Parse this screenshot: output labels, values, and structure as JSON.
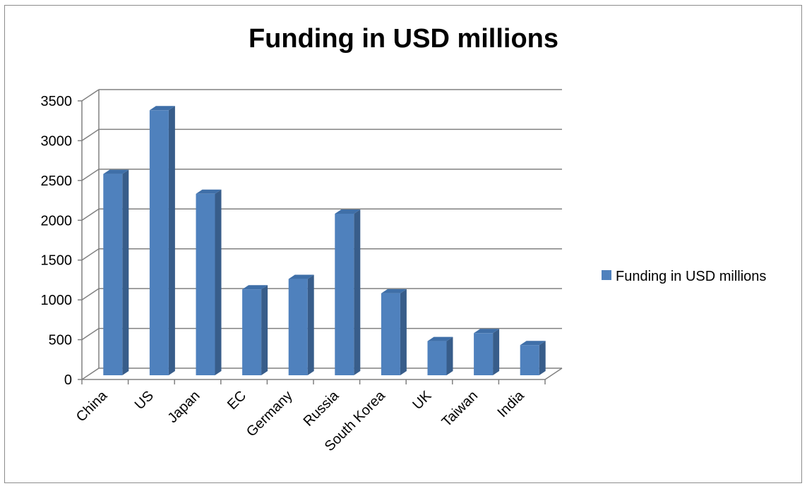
{
  "chart_data": {
    "type": "bar",
    "title": "Funding in USD millions",
    "xlabel": "",
    "ylabel": "",
    "categories": [
      "China",
      "US",
      "Japan",
      "EC",
      "Germany",
      "Russia",
      "South Korea",
      "UK",
      "Taiwan",
      "India"
    ],
    "series": [
      {
        "name": "Funding in USD millions",
        "values": [
          2600,
          3400,
          2350,
          1150,
          1280,
          2100,
          1100,
          500,
          600,
          450
        ]
      }
    ],
    "ylim": [
      0,
      3500
    ],
    "yticks": [
      "0",
      "500",
      "1000",
      "1500",
      "2000",
      "2500",
      "3000",
      "3500"
    ],
    "grid": true,
    "legend": "right",
    "colors": {
      "bar_front": "#4F81BD",
      "bar_side": "#385D8A",
      "bar_top": "#3F6FA8",
      "grid": "#808080"
    }
  }
}
